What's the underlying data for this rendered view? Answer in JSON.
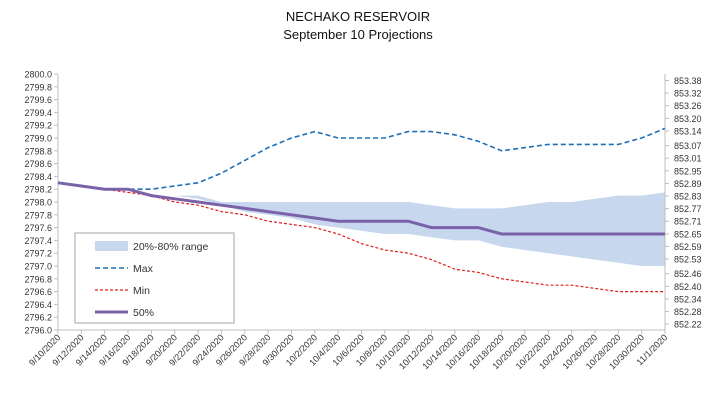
{
  "chart_data": {
    "type": "line",
    "title": "NECHAKO RESERVOIR",
    "subtitle": "September 10 Projections",
    "categories": [
      "9/10/2020",
      "9/12/2020",
      "9/14/2020",
      "9/16/2020",
      "9/18/2020",
      "9/20/2020",
      "9/22/2020",
      "9/24/2020",
      "9/26/2020",
      "9/28/2020",
      "9/30/2020",
      "10/2/2020",
      "10/4/2020",
      "10/6/2020",
      "10/8/2020",
      "10/10/2020",
      "10/12/2020",
      "10/14/2020",
      "10/16/2020",
      "10/18/2020",
      "10/20/2020",
      "10/22/2020",
      "10/24/2020",
      "10/26/2020",
      "10/28/2020",
      "10/30/2020",
      "11/1/2020"
    ],
    "y_ticks": [
      "2796.0",
      "2796.2",
      "2796.4",
      "2796.6",
      "2796.8",
      "2797.0",
      "2797.2",
      "2797.4",
      "2797.6",
      "2797.8",
      "2798.0",
      "2798.2",
      "2798.4",
      "2798.6",
      "2798.8",
      "2799.0",
      "2799.2",
      "2799.4",
      "2799.6",
      "2799.8",
      "2800.0"
    ],
    "ylim": [
      2796.0,
      2800.0
    ],
    "y2_ticks": [
      "852.22",
      "852.28",
      "852.34",
      "852.40",
      "852.46",
      "852.53",
      "852.59",
      "852.65",
      "852.71",
      "852.77",
      "852.83",
      "852.89",
      "852.95",
      "853.01",
      "853.07",
      "853.14",
      "853.20",
      "853.26",
      "853.32",
      "853.38"
    ],
    "y2_values": [
      852.22,
      852.28,
      852.34,
      852.4,
      852.46,
      852.53,
      852.59,
      852.65,
      852.71,
      852.77,
      852.83,
      852.89,
      852.95,
      853.01,
      853.07,
      853.14,
      853.2,
      853.26,
      853.32,
      853.38
    ],
    "y2lim": [
      852.192,
      853.411
    ],
    "grid": false,
    "legend_position": "lower-left inside",
    "series": [
      {
        "name": "20%-80% range",
        "kind": "band",
        "color": "#c6d7ee",
        "lower": [
          2798.3,
          2798.25,
          2798.2,
          2798.2,
          2798.15,
          2798.1,
          2798.05,
          2797.95,
          2797.85,
          2797.8,
          2797.75,
          2797.65,
          2797.6,
          2797.55,
          2797.5,
          2797.5,
          2797.45,
          2797.4,
          2797.4,
          2797.3,
          2797.25,
          2797.2,
          2797.15,
          2797.1,
          2797.05,
          2797.0,
          2797.0
        ],
        "upper": [
          2798.3,
          2798.25,
          2798.2,
          2798.2,
          2798.15,
          2798.1,
          2798.1,
          2798.0,
          2798.0,
          2798.0,
          2798.0,
          2798.0,
          2798.0,
          2798.0,
          2798.0,
          2798.0,
          2797.95,
          2797.9,
          2797.9,
          2797.9,
          2797.95,
          2798.0,
          2798.0,
          2798.05,
          2798.1,
          2798.1,
          2798.15
        ]
      },
      {
        "name": "Max",
        "kind": "line",
        "style": "dashed",
        "color": "#1f6fb5",
        "values": [
          2798.3,
          2798.25,
          2798.2,
          2798.2,
          2798.2,
          2798.25,
          2798.3,
          2798.45,
          2798.65,
          2798.85,
          2799.0,
          2799.1,
          2799.0,
          2799.0,
          2799.0,
          2799.1,
          2799.1,
          2799.05,
          2798.95,
          2798.8,
          2798.85,
          2798.9,
          2798.9,
          2798.9,
          2798.9,
          2799.0,
          2799.15
        ]
      },
      {
        "name": "Min",
        "kind": "line",
        "style": "dotted",
        "color": "#e02020",
        "values": [
          2798.3,
          2798.25,
          2798.2,
          2798.15,
          2798.1,
          2798.0,
          2797.95,
          2797.85,
          2797.8,
          2797.7,
          2797.65,
          2797.6,
          2797.5,
          2797.35,
          2797.25,
          2797.2,
          2797.1,
          2796.95,
          2796.9,
          2796.8,
          2796.75,
          2796.7,
          2796.7,
          2796.65,
          2796.6,
          2796.6,
          2796.6
        ]
      },
      {
        "name": "50%",
        "kind": "line",
        "style": "solid",
        "color": "#7a62a8",
        "values": [
          2798.3,
          2798.25,
          2798.2,
          2798.2,
          2798.1,
          2798.05,
          2798.0,
          2797.95,
          2797.9,
          2797.85,
          2797.8,
          2797.75,
          2797.7,
          2797.7,
          2797.7,
          2797.7,
          2797.6,
          2797.6,
          2797.6,
          2797.5,
          2797.5,
          2797.5,
          2797.5,
          2797.5,
          2797.5,
          2797.5,
          2797.5
        ]
      }
    ]
  }
}
